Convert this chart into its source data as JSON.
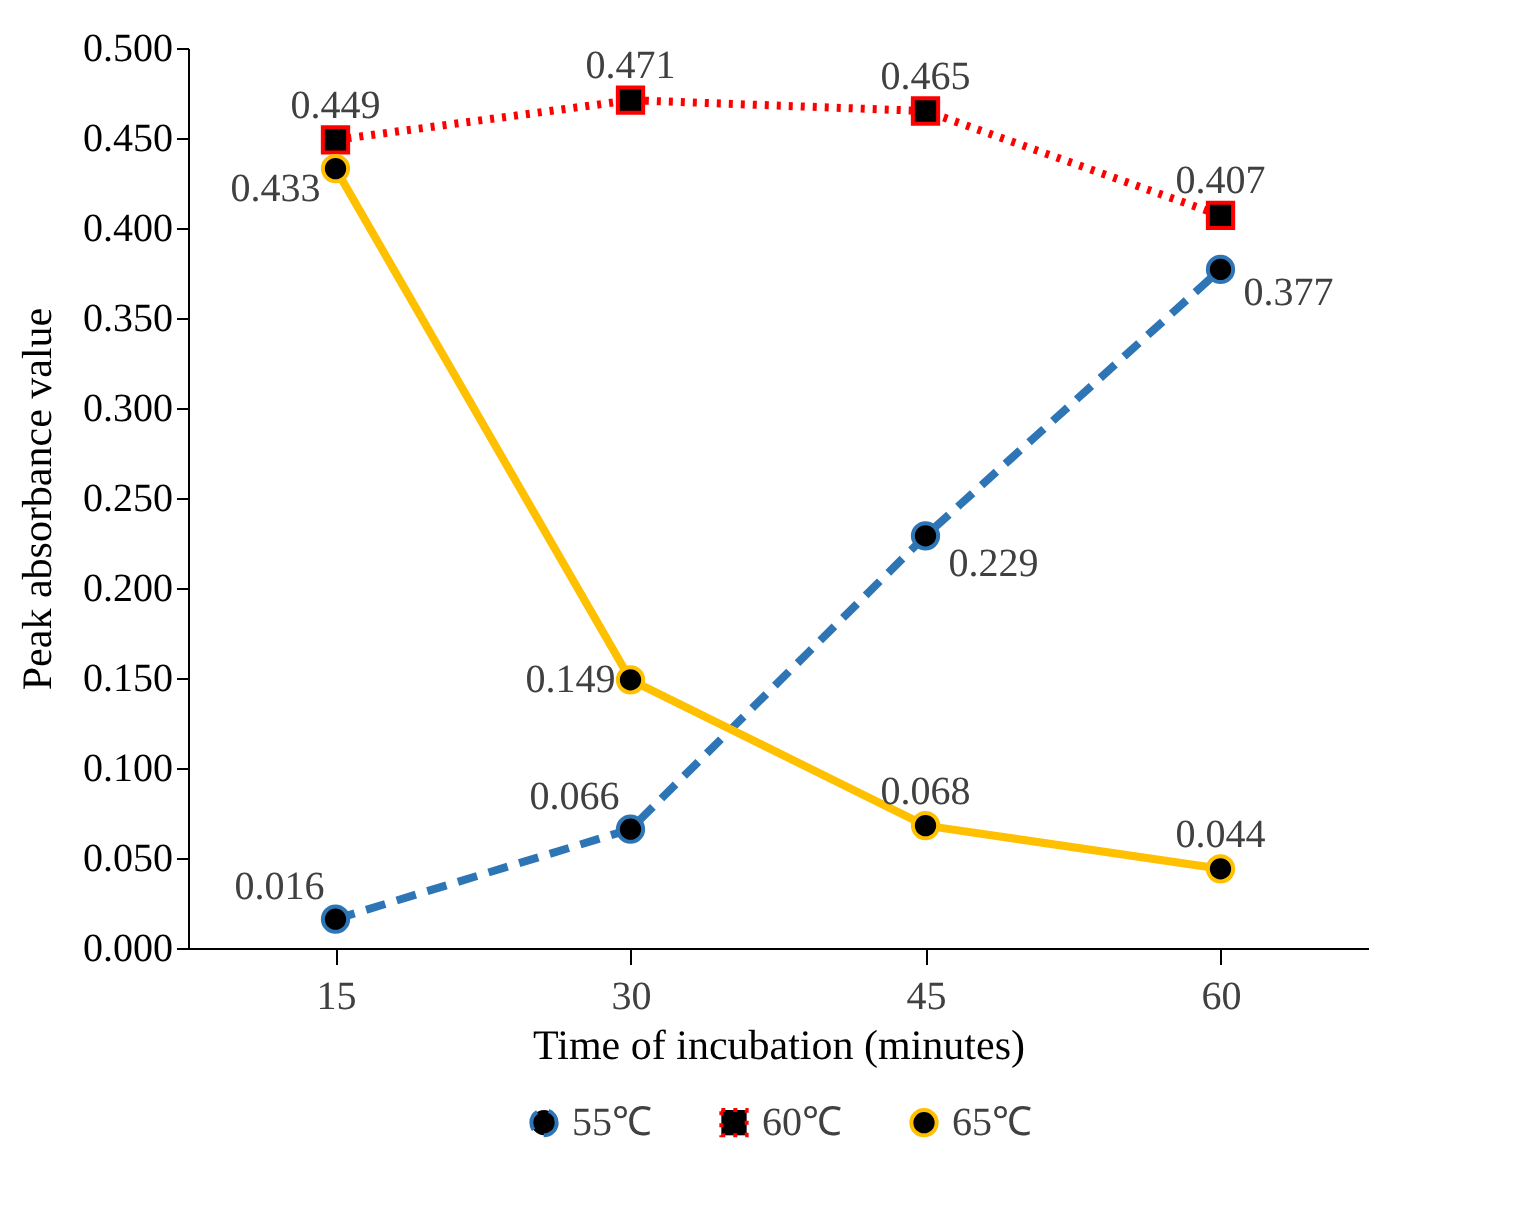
{
  "chart_data": {
    "type": "line",
    "xlabel": "Time of incubation (minutes)",
    "ylabel": "Peak absorbance value",
    "categories": [
      "15",
      "30",
      "45",
      "60"
    ],
    "series": [
      {
        "name": "55℃",
        "color": "#2e75b6",
        "line_style": "dashed",
        "marker": "circle",
        "values": [
          0.016,
          0.066,
          0.229,
          0.377
        ]
      },
      {
        "name": "60℃",
        "color": "#ff0000",
        "line_style": "dotted",
        "marker": "square",
        "values": [
          0.449,
          0.471,
          0.465,
          0.407
        ]
      },
      {
        "name": "65℃",
        "color": "#ffc000",
        "line_style": "solid",
        "marker": "circle",
        "values": [
          0.433,
          0.149,
          0.068,
          0.044
        ]
      }
    ],
    "ylim": [
      0,
      0.5
    ],
    "yticks": [
      {
        "value": 0,
        "label": "0.000"
      },
      {
        "value": 0.05,
        "label": "0.050"
      },
      {
        "value": 0.1,
        "label": "0.100"
      },
      {
        "value": 0.15,
        "label": "0.150"
      },
      {
        "value": 0.2,
        "label": "0.200"
      },
      {
        "value": 0.25,
        "label": "0.250"
      },
      {
        "value": 0.3,
        "label": "0.300"
      },
      {
        "value": 0.35,
        "label": "0.350"
      },
      {
        "value": 0.4,
        "label": "0.400"
      },
      {
        "value": 0.45,
        "label": "0.450"
      },
      {
        "value": 0.5,
        "label": "0.500"
      }
    ],
    "data_labels": true,
    "grid": false,
    "legend": "bottom"
  }
}
